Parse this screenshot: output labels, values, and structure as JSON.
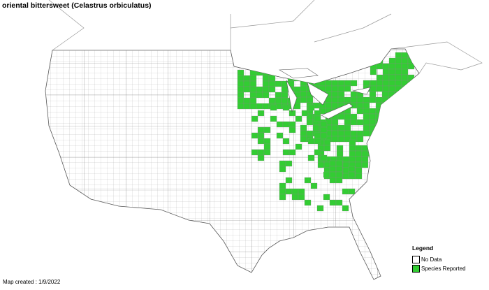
{
  "title": "oriental bittersweet (Celastrus orbiculatus)",
  "legend": {
    "title": "Legend",
    "items": [
      {
        "label": "No Data",
        "color": "#ffffff"
      },
      {
        "label": "Species Reported",
        "color": "#33cc33"
      }
    ]
  },
  "footer": "Map created : 1/9/2022",
  "colors": {
    "border": "#888888",
    "presence": "#33cc33"
  }
}
